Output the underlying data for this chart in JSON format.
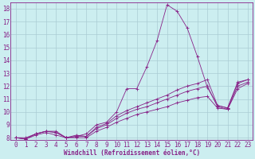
{
  "xlabel": "Windchill (Refroidissement éolien,°C)",
  "background_color": "#cceef0",
  "grid_color": "#aaccd4",
  "line_color": "#882288",
  "xlim": [
    -0.5,
    23.5
  ],
  "ylim": [
    7.8,
    18.5
  ],
  "xticks": [
    0,
    1,
    2,
    3,
    4,
    5,
    6,
    7,
    8,
    9,
    10,
    11,
    12,
    13,
    14,
    15,
    16,
    17,
    18,
    19,
    20,
    21,
    22,
    23
  ],
  "yticks": [
    8,
    9,
    10,
    11,
    12,
    13,
    14,
    15,
    16,
    17,
    18
  ],
  "series": [
    [
      8.0,
      8.0,
      8.3,
      8.5,
      8.5,
      8.0,
      8.1,
      8.3,
      9.0,
      9.2,
      10.0,
      11.8,
      11.8,
      13.5,
      15.5,
      18.3,
      17.8,
      16.5,
      14.3,
      11.9,
      10.5,
      10.3,
      12.3,
      12.5
    ],
    [
      8.0,
      7.9,
      8.3,
      8.5,
      8.4,
      8.0,
      8.2,
      8.1,
      8.8,
      9.1,
      9.7,
      10.1,
      10.4,
      10.7,
      11.0,
      11.3,
      11.7,
      12.0,
      12.2,
      12.5,
      10.5,
      10.3,
      12.2,
      12.5
    ],
    [
      8.0,
      7.9,
      8.3,
      8.5,
      8.4,
      8.0,
      8.1,
      8.1,
      8.7,
      9.0,
      9.5,
      9.9,
      10.2,
      10.4,
      10.7,
      11.0,
      11.3,
      11.6,
      11.8,
      12.0,
      10.4,
      10.2,
      12.0,
      12.3
    ],
    [
      8.0,
      7.9,
      8.2,
      8.4,
      8.2,
      8.0,
      8.0,
      8.0,
      8.5,
      8.8,
      9.2,
      9.5,
      9.8,
      10.0,
      10.2,
      10.4,
      10.7,
      10.9,
      11.1,
      11.2,
      10.3,
      10.2,
      11.8,
      12.2
    ]
  ],
  "xlabel_fontsize": 5.5,
  "tick_fontsize": 5.5
}
